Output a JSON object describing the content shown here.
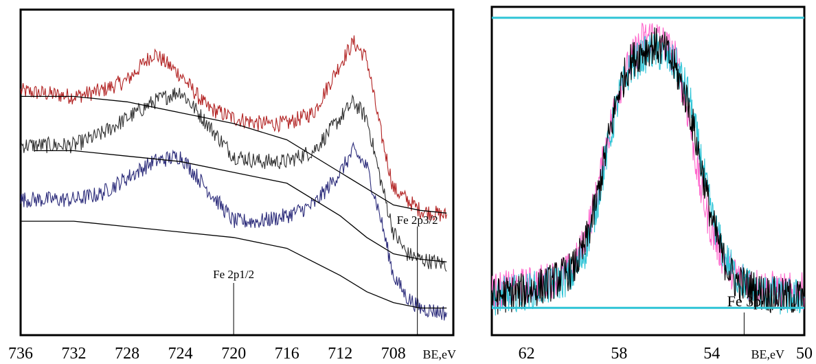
{
  "chart_data": [
    {
      "type": "line",
      "title": "",
      "xlabel": "BE,eV",
      "ylabel": "",
      "xlim": [
        736,
        703.5
      ],
      "x_reversed": true,
      "y_ticks_shown": false,
      "grid": false,
      "xticks": [
        736,
        732,
        728,
        724,
        720,
        716,
        712,
        708
      ],
      "annotations": [
        {
          "text": "Fe 2p1/2",
          "x": 720
        },
        {
          "text": "Fe 2p3/2",
          "x": 706.2
        }
      ],
      "series": [
        {
          "color": "#b22222",
          "points": [
            [
              736,
              82
            ],
            [
              732,
              80
            ],
            [
              730,
              82
            ],
            [
              728,
              86
            ],
            [
              726,
              96
            ],
            [
              724,
              88
            ],
            [
              722,
              76
            ],
            [
              720,
              72
            ],
            [
              718,
              70
            ],
            [
              716,
              70
            ],
            [
              714,
              74
            ],
            [
              712,
              92
            ],
            [
              711,
              100
            ],
            [
              710,
              94
            ],
            [
              709,
              68
            ],
            [
              708,
              46
            ],
            [
              707,
              42
            ],
            [
              706,
              38
            ],
            [
              704,
              36
            ]
          ]
        },
        {
          "color": "#303030",
          "points": [
            [
              736,
              62
            ],
            [
              732,
              62
            ],
            [
              730,
              66
            ],
            [
              728,
              72
            ],
            [
              726,
              78
            ],
            [
              724,
              82
            ],
            [
              722,
              70
            ],
            [
              720,
              58
            ],
            [
              718,
              56
            ],
            [
              716,
              56
            ],
            [
              714,
              60
            ],
            [
              712,
              72
            ],
            [
              711,
              78
            ],
            [
              710,
              72
            ],
            [
              709,
              50
            ],
            [
              708,
              30
            ],
            [
              707,
              22
            ],
            [
              706,
              20
            ],
            [
              704,
              18
            ]
          ]
        },
        {
          "color": "#2b2b7a",
          "points": [
            [
              736,
              42
            ],
            [
              732,
              42
            ],
            [
              730,
              44
            ],
            [
              728,
              50
            ],
            [
              726,
              56
            ],
            [
              724,
              58
            ],
            [
              722,
              46
            ],
            [
              720,
              34
            ],
            [
              718,
              34
            ],
            [
              716,
              36
            ],
            [
              714,
              40
            ],
            [
              712,
              52
            ],
            [
              711,
              60
            ],
            [
              710,
              54
            ],
            [
              709,
              36
            ],
            [
              708,
              14
            ],
            [
              707,
              6
            ],
            [
              706,
              2
            ],
            [
              704,
              0
            ]
          ]
        },
        {
          "color": "#000000",
          "role": "background",
          "points": [
            [
              736,
              80
            ],
            [
              732,
              80
            ],
            [
              728,
              78
            ],
            [
              724,
              74
            ],
            [
              720,
              70
            ],
            [
              716,
              64
            ],
            [
              712,
              52
            ],
            [
              710,
              46
            ],
            [
              708,
              40
            ],
            [
              706,
              38
            ],
            [
              704,
              37
            ]
          ]
        },
        {
          "color": "#000000",
          "role": "background",
          "points": [
            [
              735,
              60
            ],
            [
              732,
              60
            ],
            [
              728,
              58
            ],
            [
              724,
              56
            ],
            [
              720,
              52
            ],
            [
              716,
              48
            ],
            [
              712,
              36
            ],
            [
              710,
              28
            ],
            [
              708,
              22
            ],
            [
              706,
              20
            ],
            [
              704,
              19
            ]
          ]
        },
        {
          "color": "#000000",
          "role": "background",
          "points": [
            [
              736,
              34
            ],
            [
              732,
              34
            ],
            [
              728,
              32
            ],
            [
              724,
              30
            ],
            [
              720,
              28
            ],
            [
              716,
              24
            ],
            [
              712,
              14
            ],
            [
              710,
              8
            ],
            [
              708,
              4
            ],
            [
              706,
              2
            ],
            [
              704,
              2
            ]
          ]
        }
      ]
    },
    {
      "type": "line",
      "title": "",
      "xlabel": "BE,eV",
      "ylabel": "",
      "xlim": [
        63.5,
        50
      ],
      "x_reversed": true,
      "y_ticks_shown": false,
      "grid": false,
      "xticks": [
        62,
        58,
        54,
        50
      ],
      "annotations": [
        {
          "text": "Fe 3p",
          "x": 52.6
        }
      ],
      "series": [
        {
          "color": "#ff66cc",
          "points": [
            [
              63.5,
              6
            ],
            [
              62,
              8
            ],
            [
              61,
              10
            ],
            [
              60,
              14
            ],
            [
              59.5,
              24
            ],
            [
              59,
              40
            ],
            [
              58.5,
              62
            ],
            [
              58,
              80
            ],
            [
              57.5,
              90
            ],
            [
              57,
              98
            ],
            [
              56.5,
              100
            ],
            [
              56,
              96
            ],
            [
              55.5,
              90
            ],
            [
              55,
              70
            ],
            [
              54.5,
              44
            ],
            [
              54,
              28
            ],
            [
              53.5,
              18
            ],
            [
              53,
              12
            ],
            [
              52,
              8
            ],
            [
              51,
              6
            ],
            [
              50,
              6
            ]
          ]
        },
        {
          "color": "#2ec4d6",
          "points": [
            [
              63.5,
              4
            ],
            [
              62,
              6
            ],
            [
              61,
              8
            ],
            [
              60,
              12
            ],
            [
              59.5,
              20
            ],
            [
              59,
              36
            ],
            [
              58.5,
              58
            ],
            [
              58,
              78
            ],
            [
              57.5,
              88
            ],
            [
              57,
              92
            ],
            [
              56.5,
              94
            ],
            [
              56,
              92
            ],
            [
              55.5,
              88
            ],
            [
              55,
              78
            ],
            [
              54.5,
              56
            ],
            [
              54,
              34
            ],
            [
              53.5,
              20
            ],
            [
              53,
              12
            ],
            [
              52,
              6
            ],
            [
              51,
              4
            ],
            [
              50,
              4
            ]
          ]
        },
        {
          "color": "#000000",
          "points": [
            [
              63.5,
              4
            ],
            [
              62,
              6
            ],
            [
              61,
              9
            ],
            [
              60,
              14
            ],
            [
              59.5,
              22
            ],
            [
              59,
              38
            ],
            [
              58.5,
              60
            ],
            [
              58,
              80
            ],
            [
              57.5,
              90
            ],
            [
              57,
              94
            ],
            [
              56.5,
              96
            ],
            [
              56,
              94
            ],
            [
              55.5,
              86
            ],
            [
              55,
              74
            ],
            [
              54.5,
              54
            ],
            [
              54,
              32
            ],
            [
              53.5,
              18
            ],
            [
              53,
              10
            ],
            [
              52,
              6
            ],
            [
              51,
              4
            ],
            [
              50,
              4
            ]
          ]
        },
        {
          "color": "#2ec4d6",
          "role": "baseline",
          "points": [
            [
              63.5,
              0
            ],
            [
              50,
              0
            ]
          ]
        },
        {
          "color": "#2ec4d6",
          "role": "top-line",
          "points": [
            [
              63.5,
              106
            ],
            [
              50,
              106
            ]
          ]
        }
      ]
    }
  ]
}
